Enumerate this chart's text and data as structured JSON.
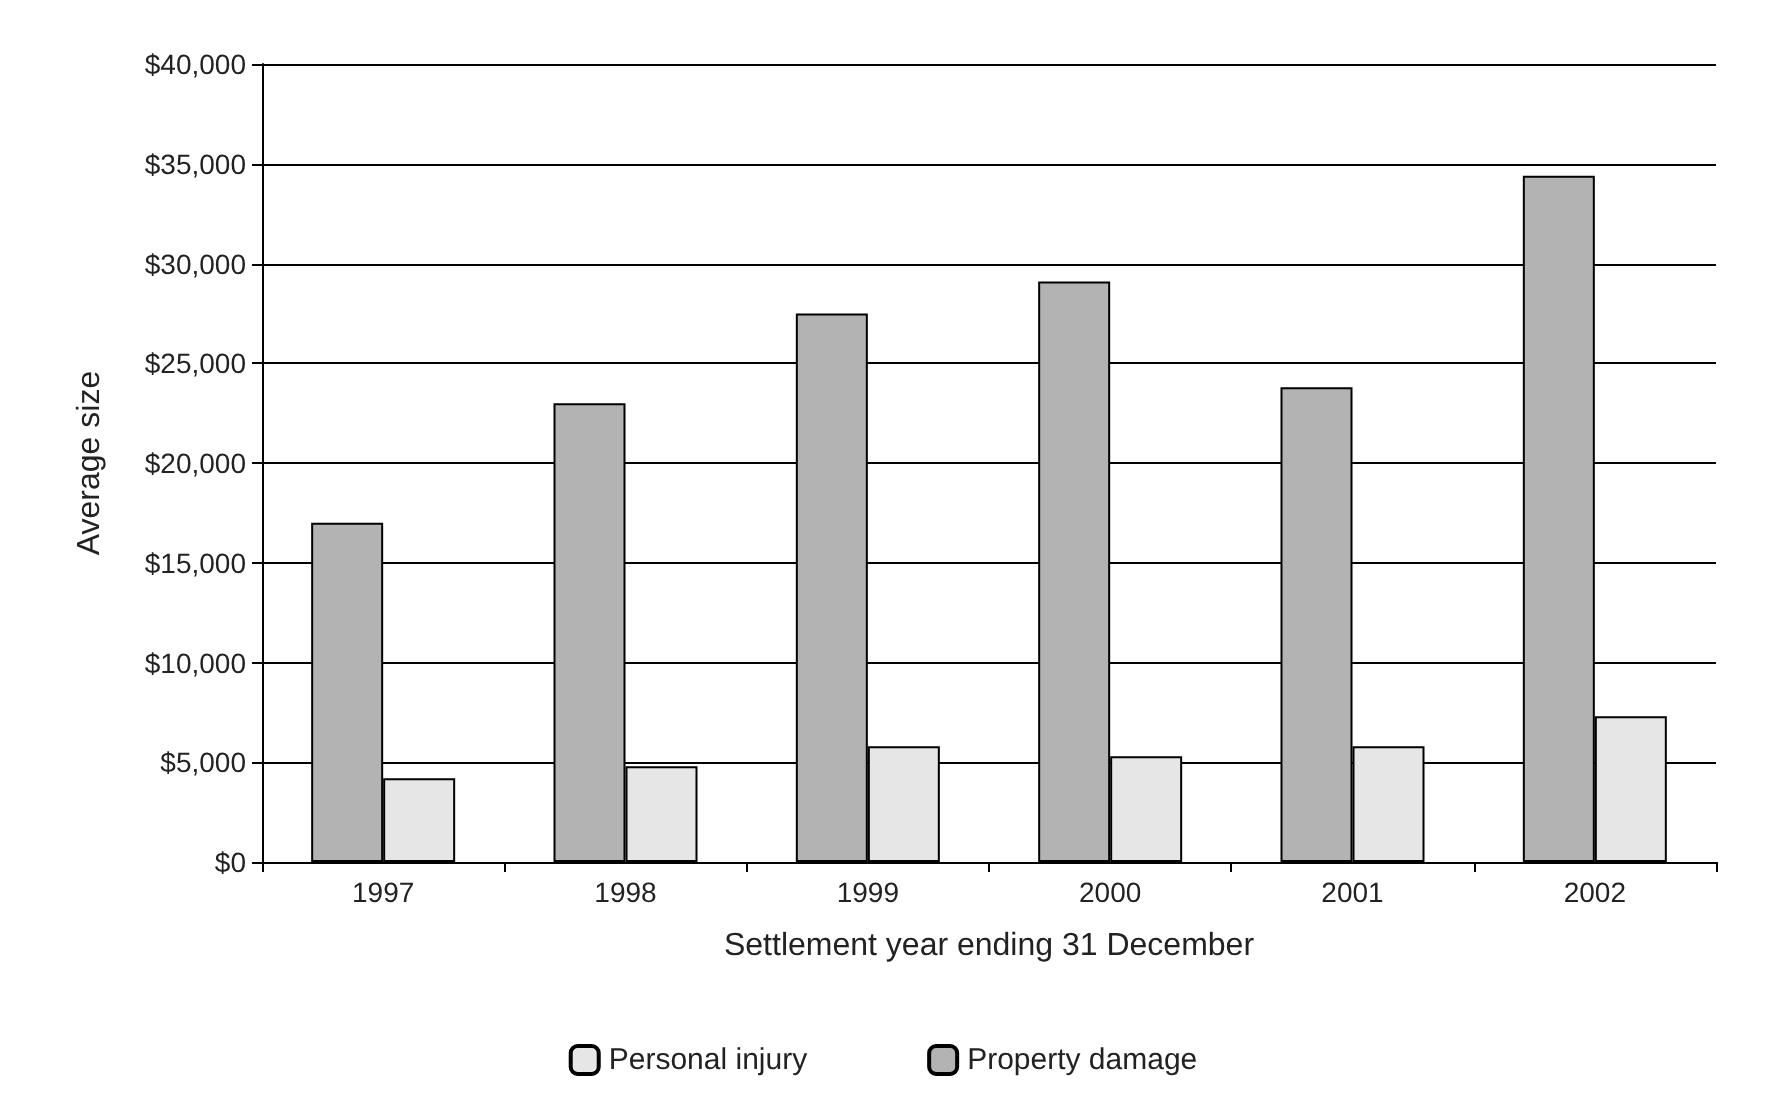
{
  "chart_data": {
    "type": "bar",
    "xlabel": "Settlement year ending 31 December",
    "ylabel": "Average size",
    "categories": [
      "1997",
      "1998",
      "1999",
      "2000",
      "2001",
      "2002"
    ],
    "series": [
      {
        "name": "Property damage",
        "color": "#b3b3b3",
        "values": [
          17000,
          23000,
          27500,
          29100,
          23800,
          34400
        ]
      },
      {
        "name": "Personal injury",
        "color": "#e6e6e6",
        "values": [
          4200,
          4800,
          5800,
          5300,
          5800,
          7300
        ]
      }
    ],
    "ylim": [
      0,
      40000
    ],
    "yticks": [
      {
        "value": 0,
        "label": "$0"
      },
      {
        "value": 5000,
        "label": "$5,000"
      },
      {
        "value": 10000,
        "label": "$10,000"
      },
      {
        "value": 15000,
        "label": "$15,000"
      },
      {
        "value": 20000,
        "label": "$20,000"
      },
      {
        "value": 25000,
        "label": "$25,000"
      },
      {
        "value": 30000,
        "label": "$30,000"
      },
      {
        "value": 35000,
        "label": "$35,000"
      },
      {
        "value": 40000,
        "label": "$40,000"
      }
    ],
    "grid": "y",
    "legend": "bottom"
  }
}
